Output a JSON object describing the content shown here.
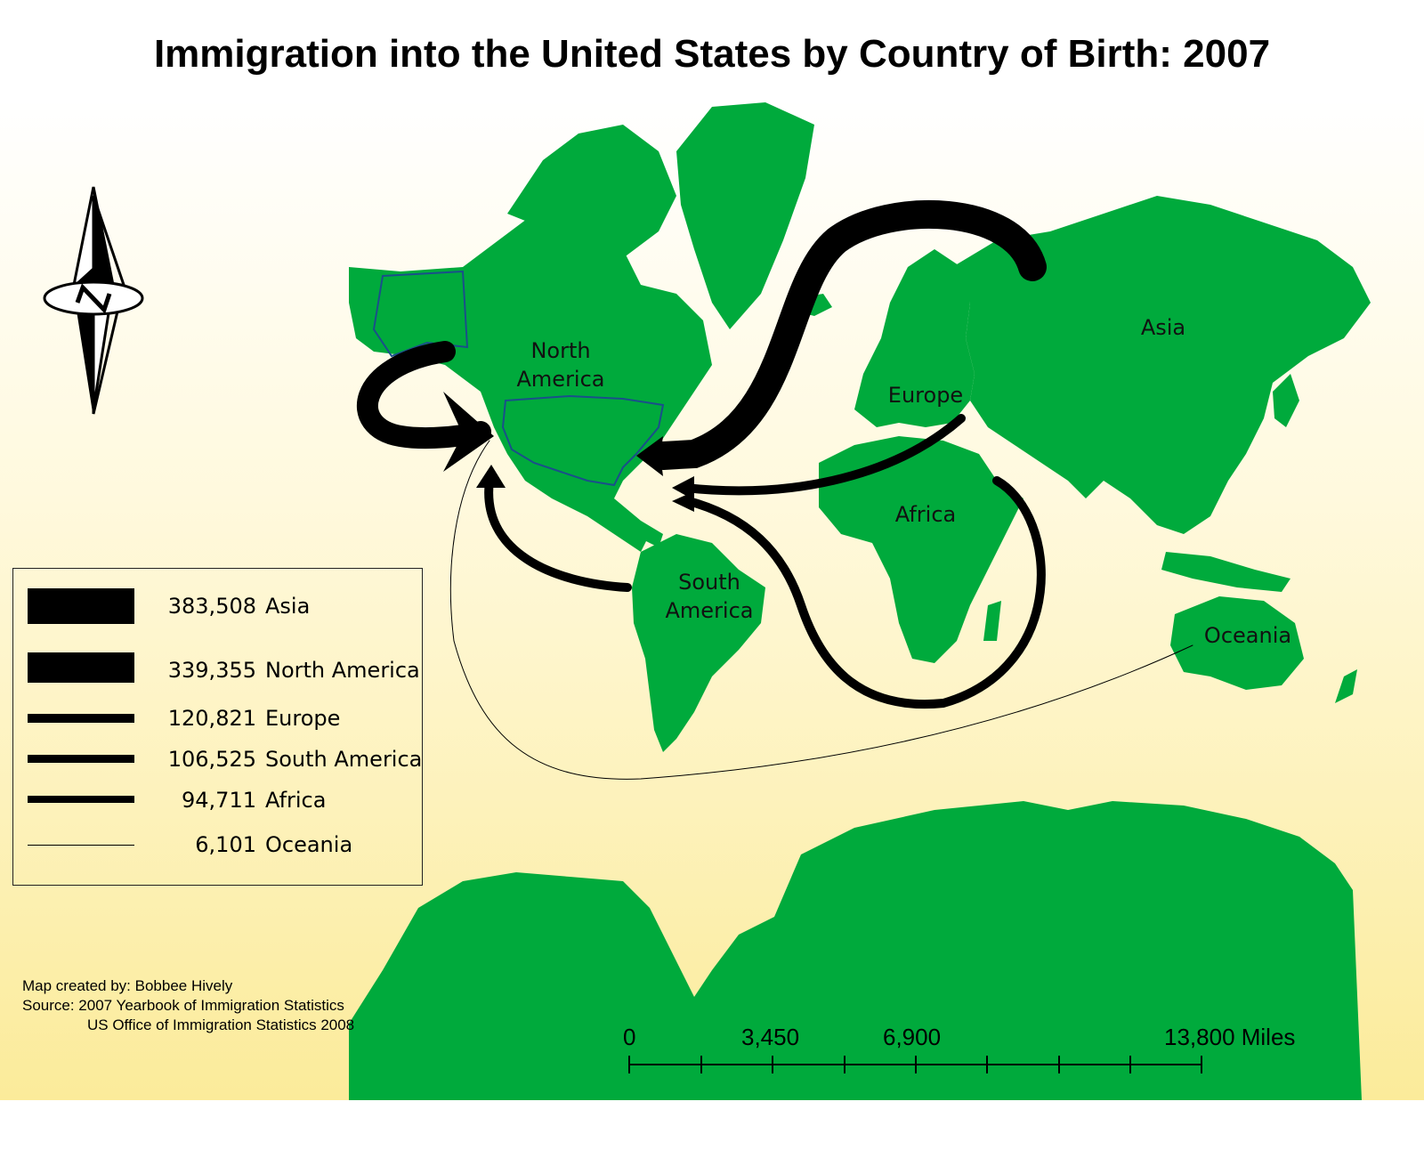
{
  "title": "Immigration into the United States by Country of Birth: 2007",
  "colors": {
    "land": "#00aa3c",
    "arrow": "#000000",
    "background_top": "#ffffff",
    "background_bottom": "#fbeb9a"
  },
  "compass": {
    "icon": "north-arrow-icon",
    "letter": "N"
  },
  "regions": {
    "north_america": [
      "North",
      "America"
    ],
    "south_america": [
      "South",
      "America"
    ],
    "europe": "Europe",
    "africa": "Africa",
    "asia": "Asia",
    "oceania": "Oceania"
  },
  "legend": {
    "rows": [
      {
        "value": "383,508",
        "name": "Asia",
        "count": 383508
      },
      {
        "value": "339,355",
        "name": "North America",
        "count": 339355
      },
      {
        "value": "120,821",
        "name": "Europe",
        "count": 120821
      },
      {
        "value": "106,525",
        "name": "South America",
        "count": 106525
      },
      {
        "value": "94,711",
        "name": "Africa",
        "count": 94711
      },
      {
        "value": "6,101",
        "name": "Oceania",
        "count": 6101
      }
    ]
  },
  "credits": {
    "line1": "Map created by: Bobbee Hively",
    "line2": "Source: 2007 Yearbook of Immigration Statistics",
    "line3": "US Office of Immigration Statistics 2008"
  },
  "scale_bar": {
    "labels": [
      "0",
      "3,450",
      "6,900",
      "13,800 Miles"
    ]
  }
}
